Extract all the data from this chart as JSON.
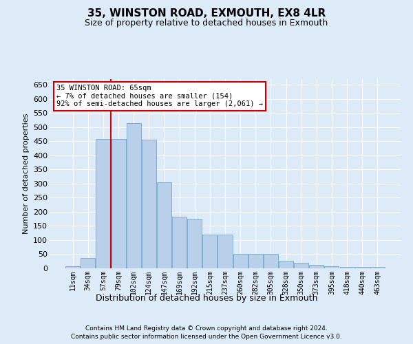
{
  "title": "35, WINSTON ROAD, EXMOUTH, EX8 4LR",
  "subtitle": "Size of property relative to detached houses in Exmouth",
  "xlabel": "Distribution of detached houses by size in Exmouth",
  "ylabel": "Number of detached properties",
  "footer_line1": "Contains HM Land Registry data © Crown copyright and database right 2024.",
  "footer_line2": "Contains public sector information licensed under the Open Government Licence v3.0.",
  "bar_labels": [
    "11sqm",
    "34sqm",
    "57sqm",
    "79sqm",
    "102sqm",
    "124sqm",
    "147sqm",
    "169sqm",
    "192sqm",
    "215sqm",
    "237sqm",
    "260sqm",
    "282sqm",
    "305sqm",
    "328sqm",
    "350sqm",
    "373sqm",
    "395sqm",
    "418sqm",
    "440sqm",
    "463sqm"
  ],
  "bar_values": [
    7,
    36,
    458,
    458,
    515,
    455,
    305,
    182,
    175,
    119,
    119,
    51,
    51,
    51,
    28,
    20,
    13,
    8,
    5,
    5,
    5
  ],
  "bar_color": "#b8d0ea",
  "bar_edge_color": "#7aafd4",
  "background_color": "#ddeaf7",
  "grid_color": "#ffffff",
  "red_line_color": "#dd0000",
  "red_line_x": 2.5,
  "annotation_text": "35 WINSTON ROAD: 65sqm\n← 7% of detached houses are smaller (154)\n92% of semi-detached houses are larger (2,061) →",
  "annotation_facecolor": "#ffffff",
  "annotation_edgecolor": "#cc0000",
  "ylim": [
    0,
    670
  ],
  "yticks": [
    0,
    50,
    100,
    150,
    200,
    250,
    300,
    350,
    400,
    450,
    500,
    550,
    600,
    650
  ]
}
